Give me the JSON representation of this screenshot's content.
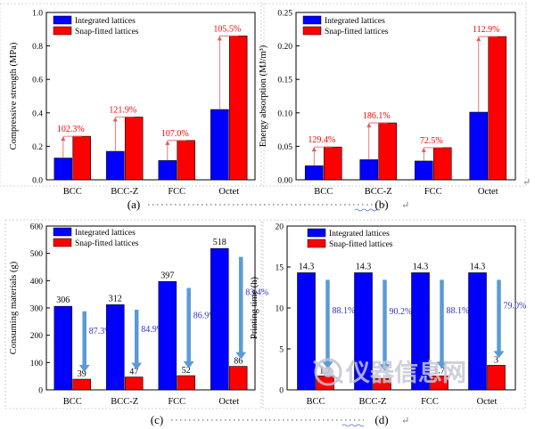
{
  "chart_data": [
    {
      "type": "bar",
      "panel": "(a)",
      "ylabel": "Compressive strength (MPa)",
      "ylim": [
        0,
        1.0
      ],
      "ticks": [
        0.0,
        0.2,
        0.4,
        0.6,
        0.8,
        1.0
      ],
      "tick_labels": [
        "0.0",
        "0.2",
        "0.4",
        "0.6",
        "0.8",
        "1.0"
      ],
      "categories": [
        "BCC",
        "BCC-Z",
        "FCC",
        "Octet"
      ],
      "series": [
        {
          "name": "Integrated lattices",
          "values": [
            0.13,
            0.17,
            0.115,
            0.42
          ]
        },
        {
          "name": "Snap-fitted lattices",
          "values": [
            0.26,
            0.375,
            0.235,
            0.86
          ]
        }
      ],
      "annotations": [
        "102.3%",
        "121.9%",
        "107.0%",
        "105.5%"
      ],
      "annotation_style": "up-arrow",
      "legend": "top-left"
    },
    {
      "type": "bar",
      "panel": "(b)",
      "ylabel": "Energy absorption (MJ/m³)",
      "ylim": [
        0,
        0.25
      ],
      "ticks": [
        0.0,
        0.05,
        0.1,
        0.15,
        0.2,
        0.25
      ],
      "tick_labels": [
        "0.00",
        "0.05",
        "0.10",
        "0.15",
        "0.20",
        "0.25"
      ],
      "categories": [
        "BCC",
        "BCC-Z",
        "FCC",
        "Octet"
      ],
      "series": [
        {
          "name": "Integrated lattices",
          "values": [
            0.021,
            0.03,
            0.028,
            0.101
          ]
        },
        {
          "name": "Snap-fitted lattices",
          "values": [
            0.049,
            0.085,
            0.048,
            0.214
          ]
        }
      ],
      "annotations": [
        "129.4%",
        "186.1%",
        "72.5%",
        "112.9%"
      ],
      "annotation_style": "up-arrow",
      "legend": "top-left"
    },
    {
      "type": "bar",
      "panel": "(c)",
      "ylabel": "Consuming materials (g)",
      "ylim": [
        0,
        600
      ],
      "ticks": [
        0,
        100,
        200,
        300,
        400,
        500,
        600
      ],
      "tick_labels": [
        "0",
        "100",
        "200",
        "300",
        "400",
        "500",
        "600"
      ],
      "categories": [
        "BCC",
        "BCC-Z",
        "FCC",
        "Octet"
      ],
      "series": [
        {
          "name": "Integrated lattices",
          "values": [
            306,
            312,
            397,
            518
          ]
        },
        {
          "name": "Snap-fitted lattices",
          "values": [
            39,
            47,
            52,
            86
          ]
        }
      ],
      "value_labels": [
        [
          "306",
          "312",
          "397",
          "518"
        ],
        [
          "39",
          "47",
          "52",
          "86"
        ]
      ],
      "annotations": [
        "87.3%",
        "84.9%",
        "86.9%",
        "83.4%"
      ],
      "annotation_style": "down-arrow",
      "legend": "top-left"
    },
    {
      "type": "bar",
      "panel": "(d)",
      "ylabel": "Printing time (h)",
      "ylim": [
        0,
        20
      ],
      "ticks": [
        0,
        5,
        10,
        15,
        20
      ],
      "tick_labels": [
        "0",
        "5",
        "10",
        "15",
        "20"
      ],
      "categories": [
        "BCC",
        "BCC-Z",
        "FCC",
        "Octet"
      ],
      "series": [
        {
          "name": "Integrated lattices",
          "values": [
            14.3,
            14.3,
            14.3,
            14.3
          ]
        },
        {
          "name": "Snap-fitted lattices",
          "values": [
            1.7,
            1.4,
            1.7,
            3.0
          ]
        }
      ],
      "value_labels": [
        [
          "14.3",
          "14.3",
          "14.3",
          "14.3"
        ],
        [
          "1.7",
          "",
          "1.7",
          "3"
        ]
      ],
      "annotations": [
        "88.1%",
        "90.2%",
        "88.1%",
        "79.0%"
      ],
      "annotation_style": "down-arrow",
      "legend": "top-left"
    }
  ],
  "colors": {
    "integrated": "#0000ff",
    "snap": "#ff0000",
    "up_arrow": "#e05a5a",
    "up_text": "#ff0000",
    "down_arrow": "#5b9bd5",
    "down_text": "#3333cc"
  },
  "watermark": "仪器信息网"
}
